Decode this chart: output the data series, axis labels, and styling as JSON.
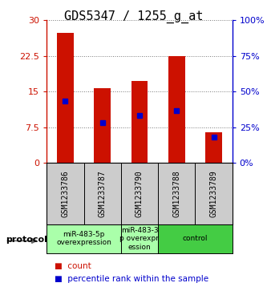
{
  "title": "GDS5347 / 1255_g_at",
  "samples": [
    "GSM1233786",
    "GSM1233787",
    "GSM1233790",
    "GSM1233788",
    "GSM1233789"
  ],
  "bar_heights": [
    27.3,
    15.7,
    17.2,
    22.5,
    6.5
  ],
  "percentile_values": [
    13.0,
    8.5,
    10.0,
    11.0,
    5.5
  ],
  "left_ylim": [
    0,
    30
  ],
  "left_yticks": [
    0,
    7.5,
    15,
    22.5,
    30
  ],
  "right_ylim": [
    0,
    100
  ],
  "right_yticks": [
    0,
    25,
    50,
    75,
    100
  ],
  "bar_color": "#cc1100",
  "percentile_color": "#0000cc",
  "group_defs": [
    {
      "indices": [
        0,
        1
      ],
      "color": "#aaffaa",
      "label": "miR-483-5p\noverexpression"
    },
    {
      "indices": [
        2
      ],
      "color": "#aaffaa",
      "label": "miR-483-3\np overexpr\nession"
    },
    {
      "indices": [
        3,
        4
      ],
      "color": "#44cc44",
      "label": "control"
    }
  ],
  "protocol_label": "protocol",
  "legend_count_label": "count",
  "legend_percentile_label": "percentile rank within the sample",
  "dotted_grid_color": "#777777",
  "bar_width": 0.45,
  "sample_bg": "#cccccc",
  "title_fontsize": 11
}
